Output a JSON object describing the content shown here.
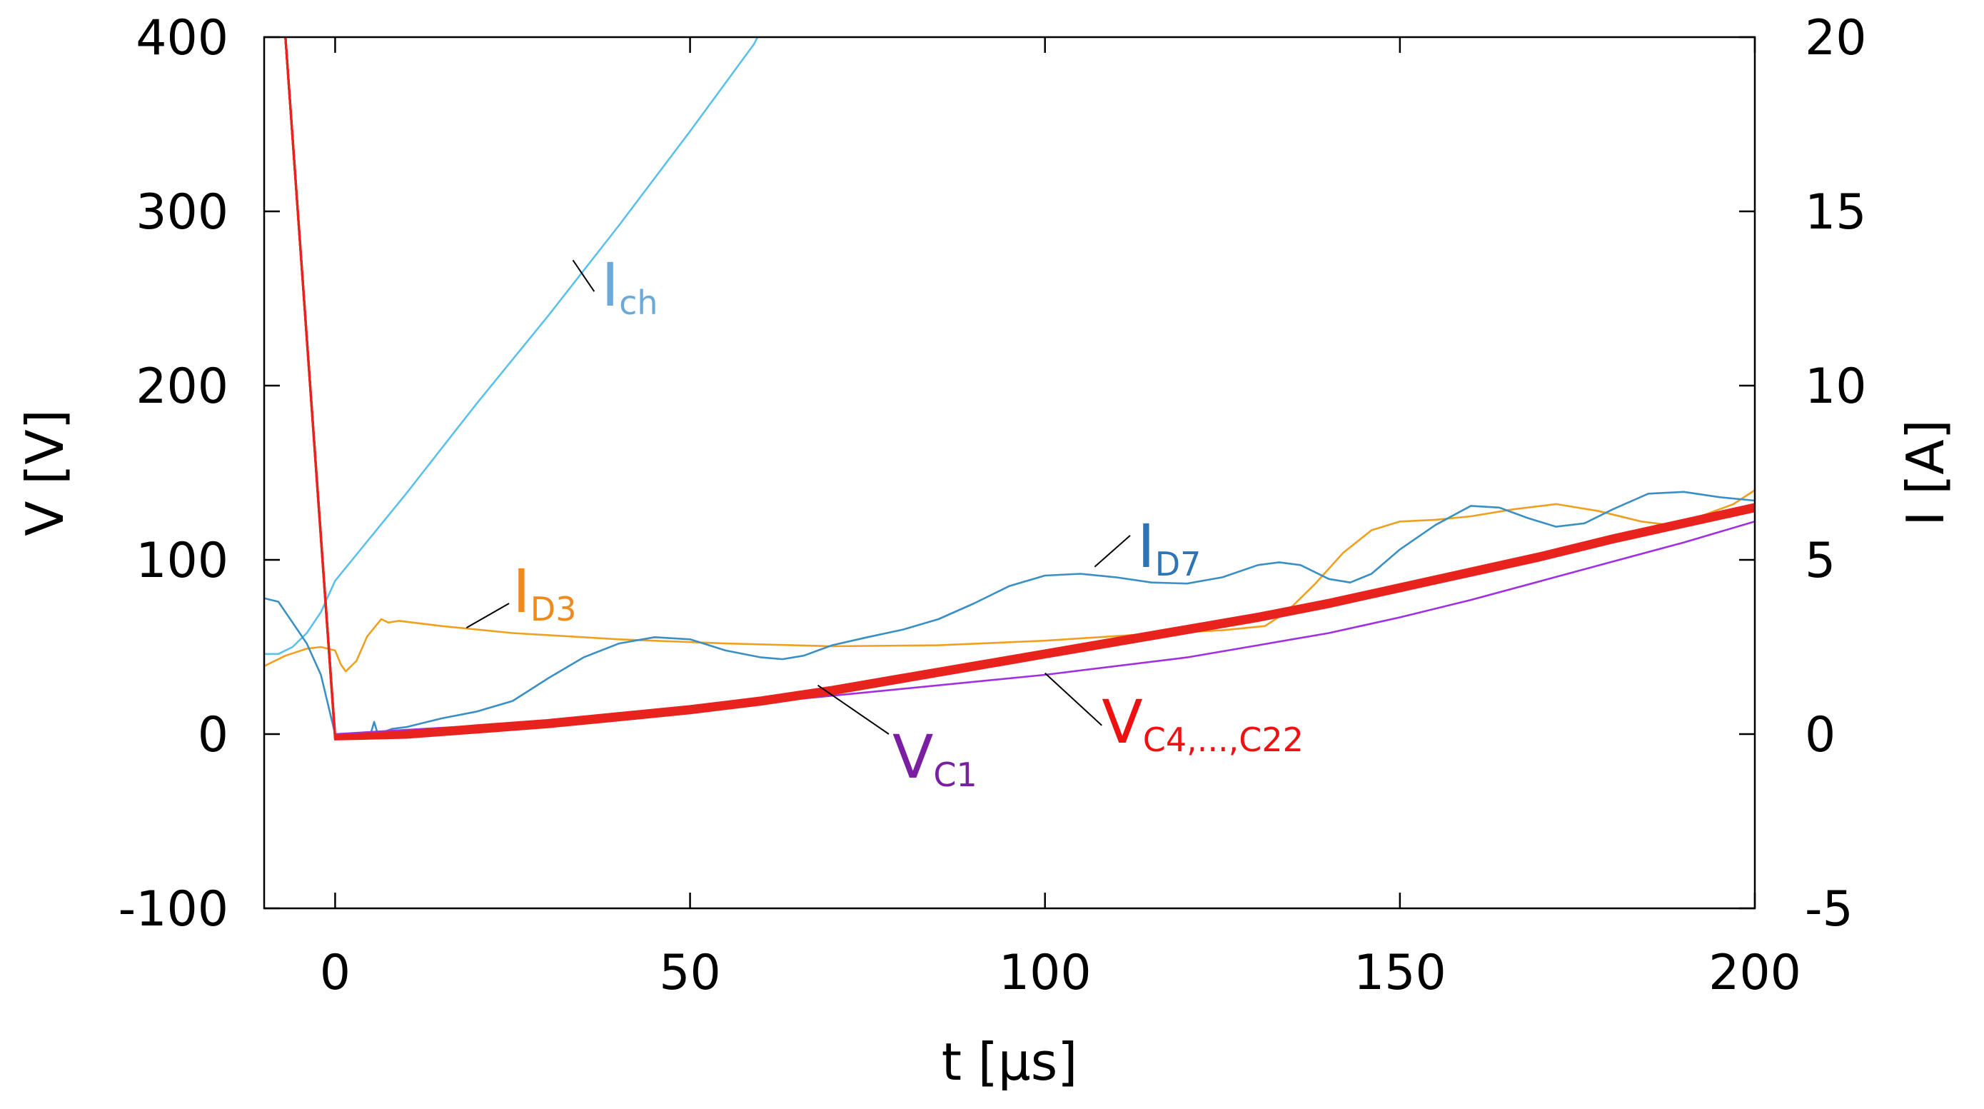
{
  "chart_data": {
    "type": "line",
    "xlabel": "t [µs]",
    "ylabel_left": "V [V]",
    "ylabel_right": "I [A]",
    "xlim": [
      -10,
      200
    ],
    "ylim_left": [
      -100,
      400
    ],
    "ylim_right": [
      -5,
      20
    ],
    "xticks": [
      0,
      50,
      100,
      150,
      200
    ],
    "yticks_left": [
      -100,
      0,
      100,
      200,
      300,
      400
    ],
    "yticks_right": [
      -5,
      0,
      5,
      10,
      15,
      20
    ],
    "x_tick_labels": [
      "0",
      "50",
      "100",
      "150",
      "200"
    ],
    "y_left_tick_labels": [
      "-100",
      "0",
      "100",
      "200",
      "300",
      "400"
    ],
    "y_right_tick_labels": [
      "-5",
      "0",
      "5",
      "10",
      "15",
      "20"
    ],
    "grid": false,
    "series": [
      {
        "name": "Ich",
        "axis": "right",
        "color": "#5bc0eb",
        "points": [
          [
            -10,
            2.3
          ],
          [
            -8,
            2.3
          ],
          [
            -6,
            2.5
          ],
          [
            -4,
            2.9
          ],
          [
            -2,
            3.5
          ],
          [
            0,
            4.4
          ],
          [
            10,
            6.9
          ],
          [
            20,
            9.5
          ],
          [
            30,
            12.0
          ],
          [
            40,
            14.6
          ],
          [
            50,
            17.3
          ],
          [
            59,
            19.8
          ],
          [
            60,
            20.2
          ]
        ]
      },
      {
        "name": "ID3",
        "axis": "right",
        "color": "#f0a020",
        "points": [
          [
            -10,
            1.95
          ],
          [
            -7,
            2.25
          ],
          [
            -4,
            2.45
          ],
          [
            -2,
            2.5
          ],
          [
            0,
            2.4
          ],
          [
            0.8,
            2.0
          ],
          [
            1.5,
            1.8
          ],
          [
            3,
            2.1
          ],
          [
            4.5,
            2.8
          ],
          [
            5.5,
            3.05
          ],
          [
            6.5,
            3.3
          ],
          [
            7.5,
            3.2
          ],
          [
            9,
            3.25
          ],
          [
            15,
            3.1
          ],
          [
            25,
            2.9
          ],
          [
            40,
            2.72
          ],
          [
            55,
            2.6
          ],
          [
            70,
            2.52
          ],
          [
            85,
            2.55
          ],
          [
            100,
            2.68
          ],
          [
            115,
            2.88
          ],
          [
            125,
            2.98
          ],
          [
            131,
            3.1
          ],
          [
            134,
            3.5
          ],
          [
            138,
            4.3
          ],
          [
            142,
            5.2
          ],
          [
            146,
            5.85
          ],
          [
            150,
            6.1
          ],
          [
            155,
            6.15
          ],
          [
            160,
            6.25
          ],
          [
            166,
            6.45
          ],
          [
            172,
            6.6
          ],
          [
            178,
            6.4
          ],
          [
            184,
            6.1
          ],
          [
            188,
            6.0
          ],
          [
            193,
            6.3
          ],
          [
            197,
            6.6
          ],
          [
            200,
            7.0
          ]
        ]
      },
      {
        "name": "ID7",
        "axis": "right",
        "color": "#3a8fc4",
        "points": [
          [
            -10,
            3.9
          ],
          [
            -8,
            3.8
          ],
          [
            -6,
            3.2
          ],
          [
            -4,
            2.6
          ],
          [
            -2,
            1.7
          ],
          [
            0,
            0.0
          ],
          [
            2,
            0.0
          ],
          [
            5,
            0.0
          ],
          [
            5.5,
            0.35
          ],
          [
            6,
            0.0
          ],
          [
            8,
            0.15
          ],
          [
            10,
            0.2
          ],
          [
            15,
            0.45
          ],
          [
            20,
            0.65
          ],
          [
            25,
            0.95
          ],
          [
            30,
            1.6
          ],
          [
            35,
            2.2
          ],
          [
            40,
            2.6
          ],
          [
            45,
            2.78
          ],
          [
            50,
            2.72
          ],
          [
            55,
            2.4
          ],
          [
            60,
            2.2
          ],
          [
            63,
            2.15
          ],
          [
            66,
            2.25
          ],
          [
            70,
            2.55
          ],
          [
            75,
            2.78
          ],
          [
            80,
            3.0
          ],
          [
            85,
            3.3
          ],
          [
            90,
            3.75
          ],
          [
            95,
            4.25
          ],
          [
            100,
            4.55
          ],
          [
            105,
            4.6
          ],
          [
            110,
            4.5
          ],
          [
            115,
            4.35
          ],
          [
            120,
            4.32
          ],
          [
            125,
            4.5
          ],
          [
            130,
            4.85
          ],
          [
            133,
            4.93
          ],
          [
            136,
            4.85
          ],
          [
            140,
            4.45
          ],
          [
            143,
            4.35
          ],
          [
            146,
            4.6
          ],
          [
            150,
            5.3
          ],
          [
            155,
            6.0
          ],
          [
            160,
            6.55
          ],
          [
            164,
            6.5
          ],
          [
            168,
            6.2
          ],
          [
            172,
            5.95
          ],
          [
            176,
            6.05
          ],
          [
            180,
            6.45
          ],
          [
            185,
            6.9
          ],
          [
            190,
            6.95
          ],
          [
            195,
            6.8
          ],
          [
            200,
            6.7
          ]
        ]
      },
      {
        "name": "VC1",
        "axis": "left",
        "color": "#a030e0",
        "points": [
          [
            -7,
            400
          ],
          [
            0,
            0
          ],
          [
            25,
            6
          ],
          [
            50,
            14
          ],
          [
            75,
            24
          ],
          [
            100,
            34
          ],
          [
            120,
            44
          ],
          [
            130,
            51
          ],
          [
            140,
            58
          ],
          [
            150,
            67
          ],
          [
            160,
            77
          ],
          [
            170,
            88
          ],
          [
            180,
            99
          ],
          [
            190,
            110
          ],
          [
            200,
            122
          ]
        ]
      },
      {
        "name": "VC4...C22 (a)",
        "axis": "left",
        "color": "#e8231e",
        "points": [
          [
            -7,
            400
          ],
          [
            0,
            -3
          ],
          [
            10,
            -2
          ],
          [
            20,
            1
          ],
          [
            30,
            4
          ],
          [
            40,
            8
          ],
          [
            50,
            12
          ],
          [
            60,
            17
          ],
          [
            70,
            23
          ],
          [
            80,
            30
          ],
          [
            90,
            37
          ],
          [
            100,
            44
          ],
          [
            110,
            51
          ],
          [
            120,
            58
          ],
          [
            130,
            65
          ],
          [
            140,
            73
          ],
          [
            150,
            82
          ],
          [
            160,
            91
          ],
          [
            170,
            100
          ],
          [
            180,
            110
          ],
          [
            190,
            119
          ],
          [
            200,
            128
          ]
        ]
      },
      {
        "name": "VC4...C22 (b)",
        "axis": "left",
        "color": "#e8231e",
        "points": [
          [
            -7,
            400
          ],
          [
            0,
            -2
          ],
          [
            10,
            -1
          ],
          [
            20,
            2
          ],
          [
            30,
            5
          ],
          [
            40,
            9
          ],
          [
            50,
            13
          ],
          [
            60,
            18
          ],
          [
            70,
            24
          ],
          [
            80,
            31
          ],
          [
            90,
            38
          ],
          [
            100,
            45
          ],
          [
            110,
            52
          ],
          [
            120,
            59
          ],
          [
            130,
            66
          ],
          [
            140,
            74
          ],
          [
            150,
            83
          ],
          [
            160,
            92
          ],
          [
            170,
            101
          ],
          [
            180,
            111
          ],
          [
            190,
            120
          ],
          [
            200,
            129
          ]
        ]
      },
      {
        "name": "VC4...C22 (c)",
        "axis": "left",
        "color": "#e8231e",
        "points": [
          [
            -7,
            400
          ],
          [
            0,
            -2
          ],
          [
            10,
            0
          ],
          [
            20,
            3
          ],
          [
            30,
            6
          ],
          [
            40,
            10
          ],
          [
            50,
            14
          ],
          [
            60,
            19
          ],
          [
            70,
            25
          ],
          [
            80,
            32
          ],
          [
            90,
            39
          ],
          [
            100,
            46
          ],
          [
            110,
            53
          ],
          [
            120,
            60
          ],
          [
            130,
            67
          ],
          [
            140,
            75
          ],
          [
            150,
            84
          ],
          [
            160,
            93
          ],
          [
            170,
            102
          ],
          [
            180,
            112
          ],
          [
            190,
            121
          ],
          [
            200,
            130
          ]
        ]
      },
      {
        "name": "VC4...C22 (d)",
        "axis": "left",
        "color": "#e8231e",
        "points": [
          [
            -7,
            400
          ],
          [
            0,
            -1
          ],
          [
            10,
            1
          ],
          [
            20,
            4
          ],
          [
            30,
            7
          ],
          [
            40,
            11
          ],
          [
            50,
            15
          ],
          [
            60,
            20
          ],
          [
            70,
            26
          ],
          [
            80,
            33
          ],
          [
            90,
            40
          ],
          [
            100,
            47
          ],
          [
            110,
            54
          ],
          [
            120,
            61
          ],
          [
            130,
            68
          ],
          [
            140,
            76
          ],
          [
            150,
            85
          ],
          [
            160,
            94
          ],
          [
            170,
            103
          ],
          [
            180,
            113
          ],
          [
            190,
            122
          ],
          [
            200,
            131
          ]
        ]
      },
      {
        "name": "VC4...C22 (e)",
        "axis": "left",
        "color": "#e8231e",
        "points": [
          [
            -7,
            400
          ],
          [
            0,
            -1
          ],
          [
            10,
            1.5
          ],
          [
            20,
            5
          ],
          [
            30,
            8
          ],
          [
            40,
            12
          ],
          [
            50,
            16
          ],
          [
            60,
            21
          ],
          [
            70,
            27
          ],
          [
            80,
            34
          ],
          [
            90,
            41
          ],
          [
            100,
            48
          ],
          [
            110,
            55
          ],
          [
            120,
            62
          ],
          [
            130,
            69
          ],
          [
            140,
            77
          ],
          [
            150,
            86
          ],
          [
            160,
            95
          ],
          [
            170,
            104
          ],
          [
            180,
            114
          ],
          [
            190,
            123
          ],
          [
            200,
            132
          ]
        ]
      }
    ],
    "annotations": [
      {
        "id": "ich",
        "label": "I",
        "sub": "ch",
        "color": "#6aa9d8",
        "text_at": [
          37.5,
          12.3
        ],
        "text_axis": "right",
        "line": [
          [
            33.5,
            13.6
          ],
          [
            36.5,
            12.7
          ]
        ],
        "line_axis": "right"
      },
      {
        "id": "id3",
        "label": "I",
        "sub": "D3",
        "color": "#f08a1c",
        "text_at": [
          25,
          3.5
        ],
        "text_axis": "right",
        "line": [
          [
            18.5,
            3.05
          ],
          [
            24.5,
            3.75
          ]
        ],
        "line_axis": "right"
      },
      {
        "id": "id7",
        "label": "I",
        "sub": "D7",
        "color": "#2f74b5",
        "text_at": [
          113,
          4.8
        ],
        "text_axis": "right",
        "line": [
          [
            107,
            4.8
          ],
          [
            112,
            5.7
          ]
        ],
        "line_axis": "right"
      },
      {
        "id": "vc1",
        "label": "V",
        "sub": "C1",
        "color": "#7b1fa2",
        "text_at": [
          78.5,
          -25
        ],
        "text_axis": "left",
        "line": [
          [
            68,
            28
          ],
          [
            78,
            0
          ]
        ],
        "line_axis": "left"
      },
      {
        "id": "vc4",
        "label": "V",
        "sub": "C4,...,C22",
        "color": "#ee1111",
        "text_at": [
          108,
          -5
        ],
        "text_axis": "left",
        "line": [
          [
            100,
            35
          ],
          [
            108,
            5
          ]
        ],
        "line_axis": "left"
      }
    ]
  }
}
